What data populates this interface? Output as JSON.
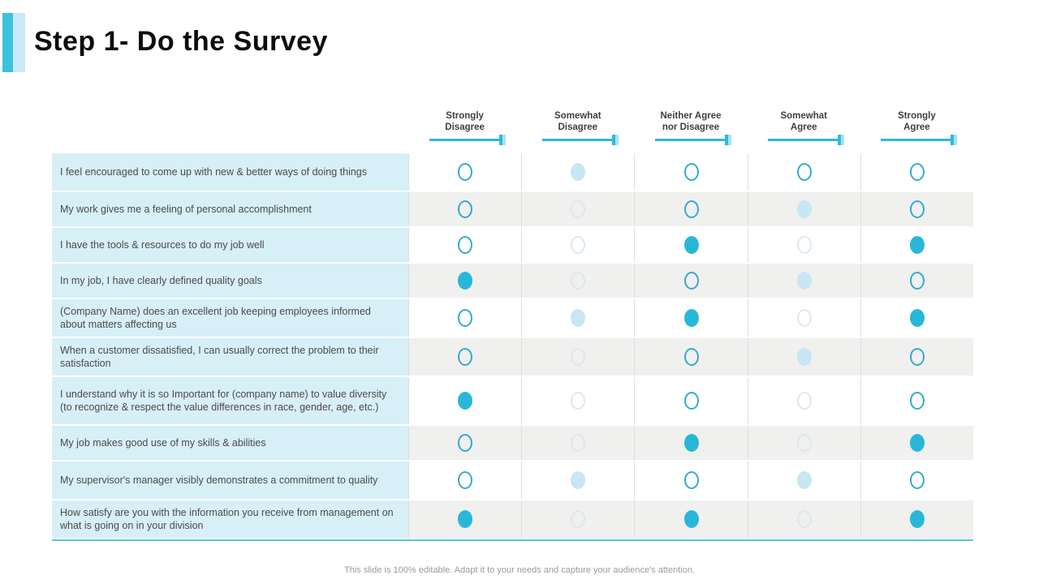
{
  "slide": {
    "title": "Step 1- Do the Survey",
    "footer": "This slide is 100% editable. Adapt it to your needs and capture your audience's attention."
  },
  "colors": {
    "accent_bar_dark": "#3ec1dc",
    "accent_bar_light": "#c9eaf5",
    "header_underline": "#2fb9d8",
    "question_cell_bg": "#d7eff7",
    "alt_row_bg": "#f0f0ef",
    "radio_solid": "#29b7d9",
    "radio_outlined": "#35aacb",
    "radio_light_fill": "#c8e6f3",
    "radio_faint": "#dce9ee"
  },
  "table": {
    "columns": [
      {
        "label": "Strongly\nDisagree"
      },
      {
        "label": "Somewhat\nDisagree"
      },
      {
        "label": "Neither Agree\nnor Disagree"
      },
      {
        "label": "Somewhat\nAgree"
      },
      {
        "label": "Strongly\nAgree"
      }
    ],
    "rows": [
      {
        "question": "I feel encouraged to come up with new & better ways of doing things",
        "answers": [
          "outlined",
          "light",
          "outlined",
          "outlined",
          "outlined"
        ]
      },
      {
        "question": "My work gives me a feeling of personal accomplishment",
        "answers": [
          "outlined",
          "faint",
          "outlined",
          "light",
          "outlined"
        ]
      },
      {
        "question": "I have the tools & resources to do my job well",
        "answers": [
          "outlined",
          "faint",
          "solid",
          "faint",
          "solid"
        ]
      },
      {
        "question": "In my job, I have clearly defined quality goals",
        "answers": [
          "solid",
          "faint",
          "outlined",
          "light",
          "outlined"
        ]
      },
      {
        "question": "(Company Name) does an excellent job keeping employees informed about matters affecting us",
        "answers": [
          "outlined",
          "light",
          "solid",
          "faint",
          "solid"
        ]
      },
      {
        "question": "When a customer dissatisfied, I can usually correct the problem to their satisfaction",
        "answers": [
          "outlined",
          "faint",
          "outlined",
          "light",
          "outlined"
        ]
      },
      {
        "question": "I understand why it is so Important for (company name) to value diversity (to recognize & respect the value differences in race, gender, age, etc.)",
        "answers": [
          "solid",
          "faint",
          "outlined",
          "faint",
          "outlined"
        ]
      },
      {
        "question": "My job makes good use of my skills & abilities",
        "answers": [
          "outlined",
          "faint",
          "solid",
          "faint",
          "solid"
        ]
      },
      {
        "question": "My supervisor's manager visibly demonstrates a commitment to quality",
        "answers": [
          "outlined",
          "light",
          "outlined",
          "light",
          "outlined"
        ]
      },
      {
        "question": "How satisfy are you with the information you receive from management on what is going on in your division",
        "answers": [
          "solid",
          "faint",
          "solid",
          "faint",
          "solid"
        ]
      }
    ]
  }
}
